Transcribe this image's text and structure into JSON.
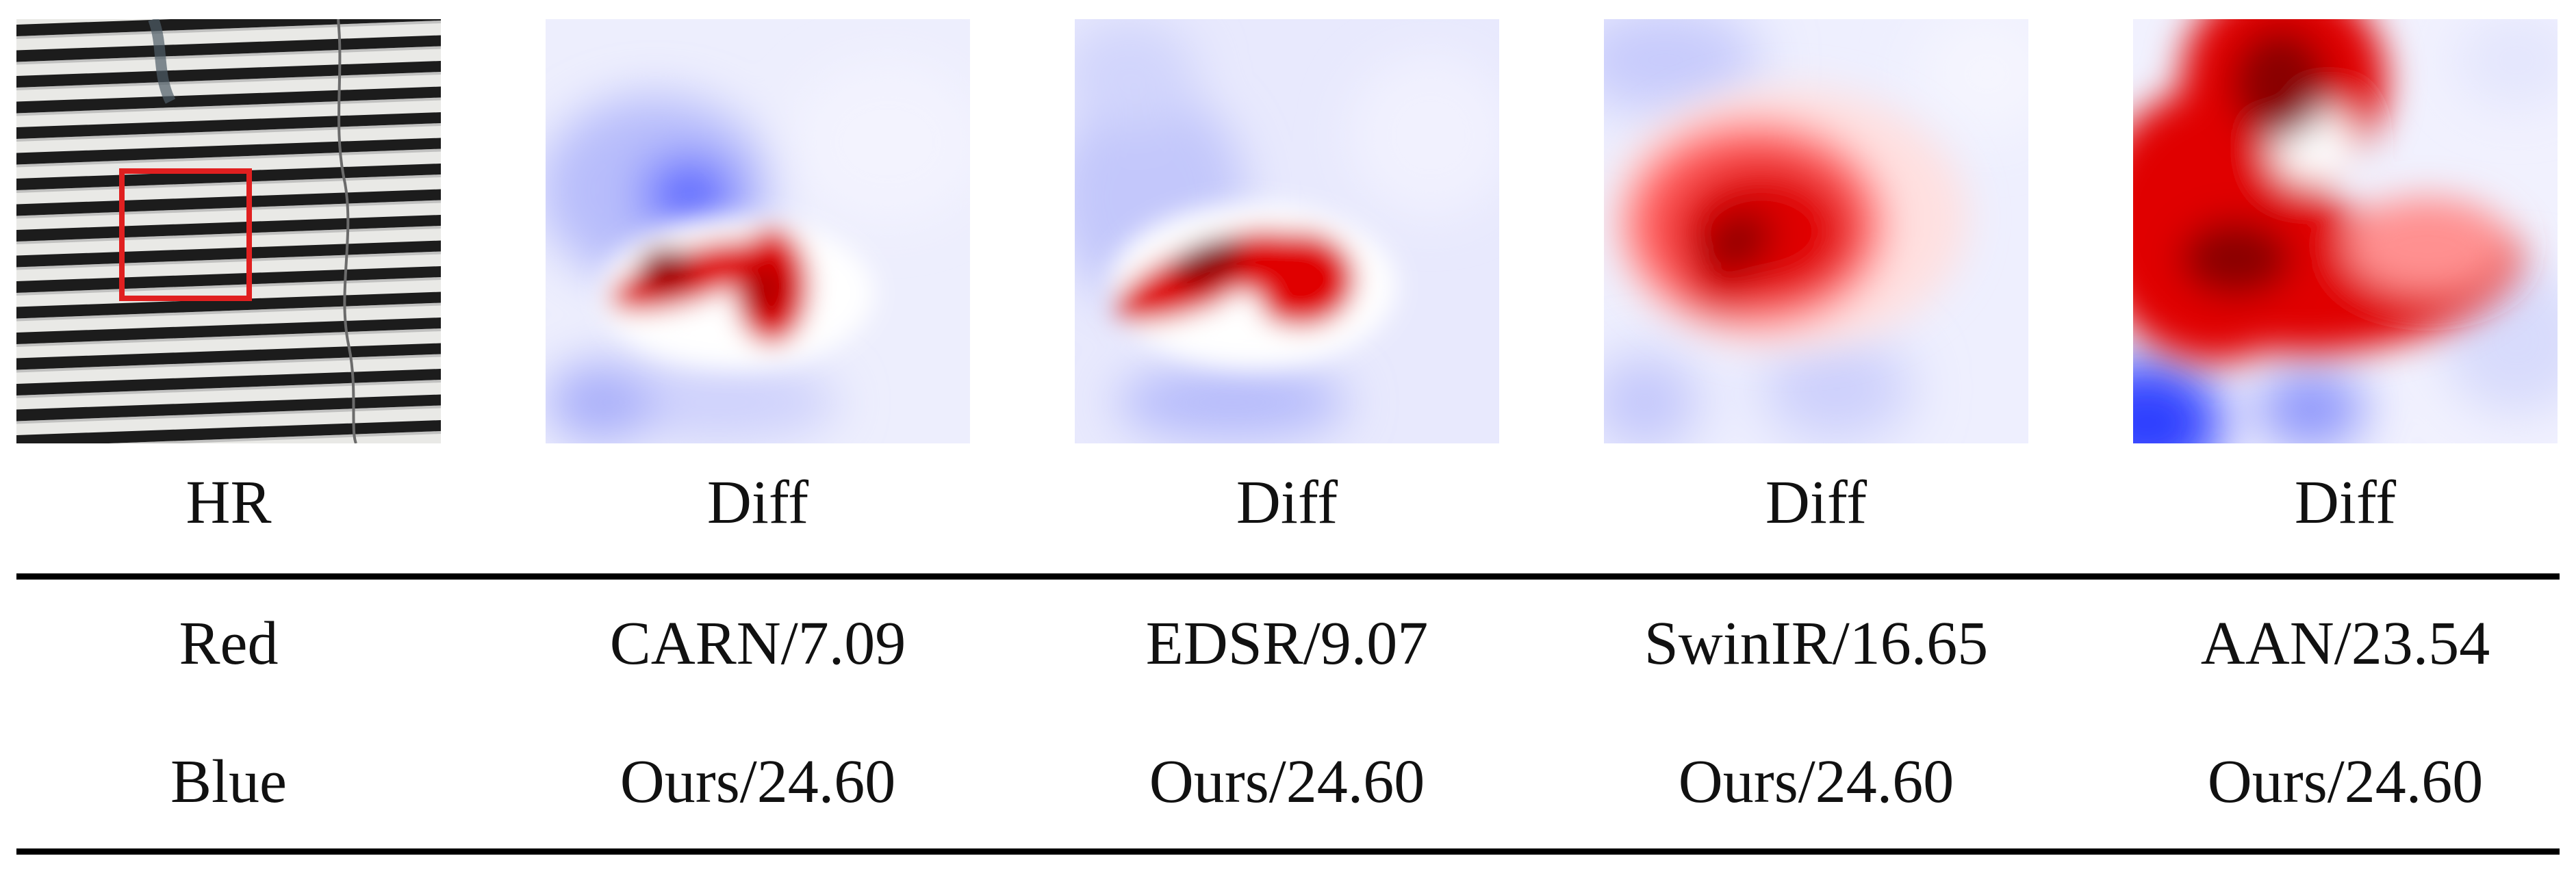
{
  "figure": {
    "panels": [
      {
        "caption": "HR",
        "kind": "photo"
      },
      {
        "caption": "Diff",
        "kind": "diff"
      },
      {
        "caption": "Diff",
        "kind": "diff"
      },
      {
        "caption": "Diff",
        "kind": "diff"
      },
      {
        "caption": "Diff",
        "kind": "diff"
      }
    ],
    "table": {
      "row_red": [
        "Red",
        "CARN/7.09",
        "EDSR/9.07",
        "SwinIR/16.65",
        "AAN/23.54"
      ],
      "row_blue": [
        "Blue",
        "Ours/24.60",
        "Ours/24.60",
        "Ours/24.60",
        "Ours/24.60"
      ]
    },
    "colors": {
      "positive": "#e00000",
      "peak": "#8a0000",
      "negative": "#3a4dff",
      "highlight_box": "#e02020"
    }
  }
}
